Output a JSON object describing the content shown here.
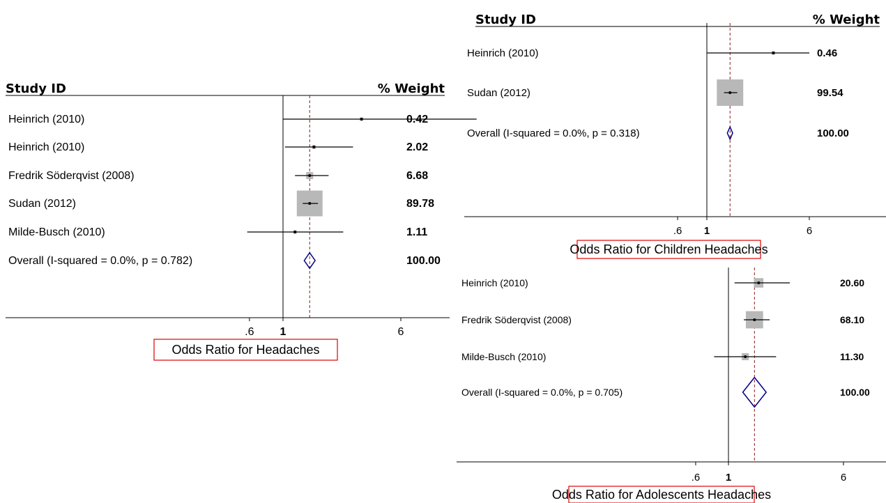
{
  "colors": {
    "box": "#b8b8b8",
    "point": "#000000",
    "ci_line": "#000000",
    "diamond": "#000080",
    "overall_line": "#8b1a1a",
    "label_border": "#e00000"
  },
  "chart_data": [
    {
      "type": "forest",
      "panel": "all",
      "xlabel": "Odds Ratio for Headaches",
      "scale": "log",
      "null_line": 1,
      "ticks": [
        ".6",
        "1",
        "6"
      ],
      "col_study": "Study ID",
      "col_weight": "% Weight",
      "studies": [
        {
          "id": "Heinrich (2010)",
          "or": 3.3,
          "lo": 1.0,
          "hi": 19.0,
          "weight": "0.42"
        },
        {
          "id": "Heinrich (2010)",
          "or": 1.6,
          "lo": 1.03,
          "hi": 2.9,
          "weight": "2.02"
        },
        {
          "id": "Fredrik Söderqvist (2008)",
          "or": 1.5,
          "lo": 1.2,
          "hi": 2.0,
          "weight": "6.68"
        },
        {
          "id": "Sudan (2012)",
          "or": 1.5,
          "lo": 1.35,
          "hi": 1.7,
          "weight": "89.78"
        },
        {
          "id": "Milde-Busch (2010)",
          "or": 1.2,
          "lo": 0.58,
          "hi": 2.5,
          "weight": "1.11"
        }
      ],
      "overall": {
        "label": "Overall  (I-squared = 0.0%, p = 0.782)",
        "or": 1.5,
        "lo": 1.38,
        "hi": 1.63,
        "weight": "100.00"
      }
    },
    {
      "type": "forest",
      "panel": "children",
      "xlabel": "Odds Ratio for Children Headaches",
      "scale": "log",
      "null_line": 1,
      "ticks": [
        ".6",
        "1",
        "6"
      ],
      "col_study": "Study ID",
      "col_weight": "% Weight",
      "studies": [
        {
          "id": "Heinrich (2010)",
          "or": 3.2,
          "lo": 1.0,
          "hi": 6.0,
          "weight": "0.46"
        },
        {
          "id": "Sudan (2012)",
          "or": 1.5,
          "lo": 1.35,
          "hi": 1.7,
          "weight": "99.54"
        }
      ],
      "overall": {
        "label": "Overall  (I-squared = 0.0%, p = 0.318)",
        "or": 1.5,
        "lo": 1.43,
        "hi": 1.57,
        "weight": "100.00"
      }
    },
    {
      "type": "forest",
      "panel": "adolescents",
      "xlabel": "Odds Ratio for Adolescents Headaches",
      "scale": "log",
      "null_line": 1,
      "ticks": [
        ".6",
        "1",
        "6"
      ],
      "col_study": "",
      "col_weight": "",
      "studies": [
        {
          "id": "Heinrich (2010)",
          "or": 1.6,
          "lo": 1.1,
          "hi": 2.6,
          "weight": "20.60"
        },
        {
          "id": "Fredrik Söderqvist (2008)",
          "or": 1.5,
          "lo": 1.27,
          "hi": 1.9,
          "weight": "68.10"
        },
        {
          "id": "Milde-Busch (2010)",
          "or": 1.3,
          "lo": 0.8,
          "hi": 2.1,
          "weight": "11.30"
        }
      ],
      "overall": {
        "label": "Overall  (I-squared = 0.0%, p = 0.705)",
        "or": 1.5,
        "lo": 1.25,
        "hi": 1.8,
        "weight": "100.00"
      }
    }
  ]
}
